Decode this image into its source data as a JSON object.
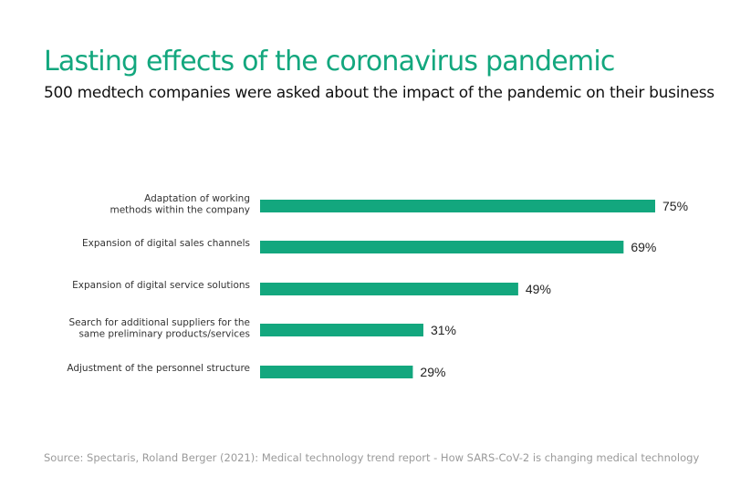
{
  "title": "Lasting effects of the coronavirus pandemic",
  "subtitle": "500 medtech companies were asked about the impact of the pandemic on their business",
  "source": "Source: Spectaris, Roland Berger (2021): Medical technology trend report - How SARS-CoV-2 is changing medical technology",
  "colors": {
    "bar": "#13a77e",
    "title": "#13a77e"
  },
  "chart_data": {
    "type": "bar",
    "orientation": "horizontal",
    "categories": [
      [
        "Adaptation of working",
        "methods within the company"
      ],
      [
        "Expansion of digital sales channels"
      ],
      [
        "Expansion of digital service solutions"
      ],
      [
        "Search for additional suppliers for the",
        "same preliminary products/services"
      ],
      [
        "Adjustment of the personnel structure"
      ]
    ],
    "values": [
      75,
      69,
      49,
      31,
      29
    ],
    "value_labels": [
      "75%",
      "69%",
      "49%",
      "31%",
      "29%"
    ],
    "xlim": [
      0,
      75
    ],
    "grid": false,
    "legend": "none"
  }
}
